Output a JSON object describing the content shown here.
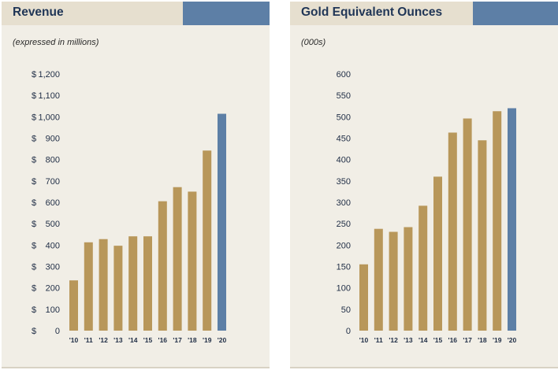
{
  "colors": {
    "panel_bg": "#f1eee6",
    "header_bg": "#e6dfcf",
    "header_accent": "#5d7fa6",
    "bar_gold": "#b8975a",
    "bar_highlight": "#5d7fa6",
    "title_text": "#1f3556"
  },
  "chart_data": [
    {
      "type": "bar",
      "title": "Revenue",
      "subtitle": "(expressed in millions)",
      "categories": [
        "'10",
        "'11",
        "'12",
        "'13",
        "'14",
        "'15",
        "'16",
        "'17",
        "'18",
        "'19",
        "'20"
      ],
      "values": [
        235,
        413,
        428,
        397,
        441,
        441,
        605,
        671,
        650,
        842,
        1014
      ],
      "highlight_index": 10,
      "ylim": [
        0,
        1200
      ],
      "yticks": [
        0,
        100,
        200,
        300,
        400,
        500,
        600,
        700,
        800,
        900,
        1000,
        1100,
        1200
      ],
      "ytick_labels": [
        "$",
        "$",
        "$",
        "$",
        "$",
        "$",
        "$",
        "$",
        "$",
        "$",
        "$",
        "$",
        "$"
      ],
      "ytick_values": [
        "0",
        "100",
        "200",
        "300",
        "400",
        "500",
        "600",
        "700",
        "800",
        "900",
        "1,000",
        "1,100",
        "1,200"
      ],
      "xlabel": "",
      "ylabel": "",
      "grid": false
    },
    {
      "type": "bar",
      "title": "Gold Equivalent Ounces",
      "subtitle": "(000s)",
      "categories": [
        "'10",
        "'11",
        "'12",
        "'13",
        "'14",
        "'15",
        "'16",
        "'17",
        "'18",
        "'19",
        "'20"
      ],
      "values": [
        155,
        238,
        231,
        242,
        292,
        360,
        463,
        496,
        445,
        513,
        520
      ],
      "highlight_index": 10,
      "ylim": [
        0,
        600
      ],
      "yticks": [
        0,
        50,
        100,
        150,
        200,
        250,
        300,
        350,
        400,
        450,
        500,
        550,
        600
      ],
      "ytick_labels": [
        "0",
        "50",
        "100",
        "150",
        "200",
        "250",
        "300",
        "350",
        "400",
        "450",
        "500",
        "550",
        "600"
      ],
      "xlabel": "",
      "ylabel": "",
      "grid": false
    }
  ]
}
